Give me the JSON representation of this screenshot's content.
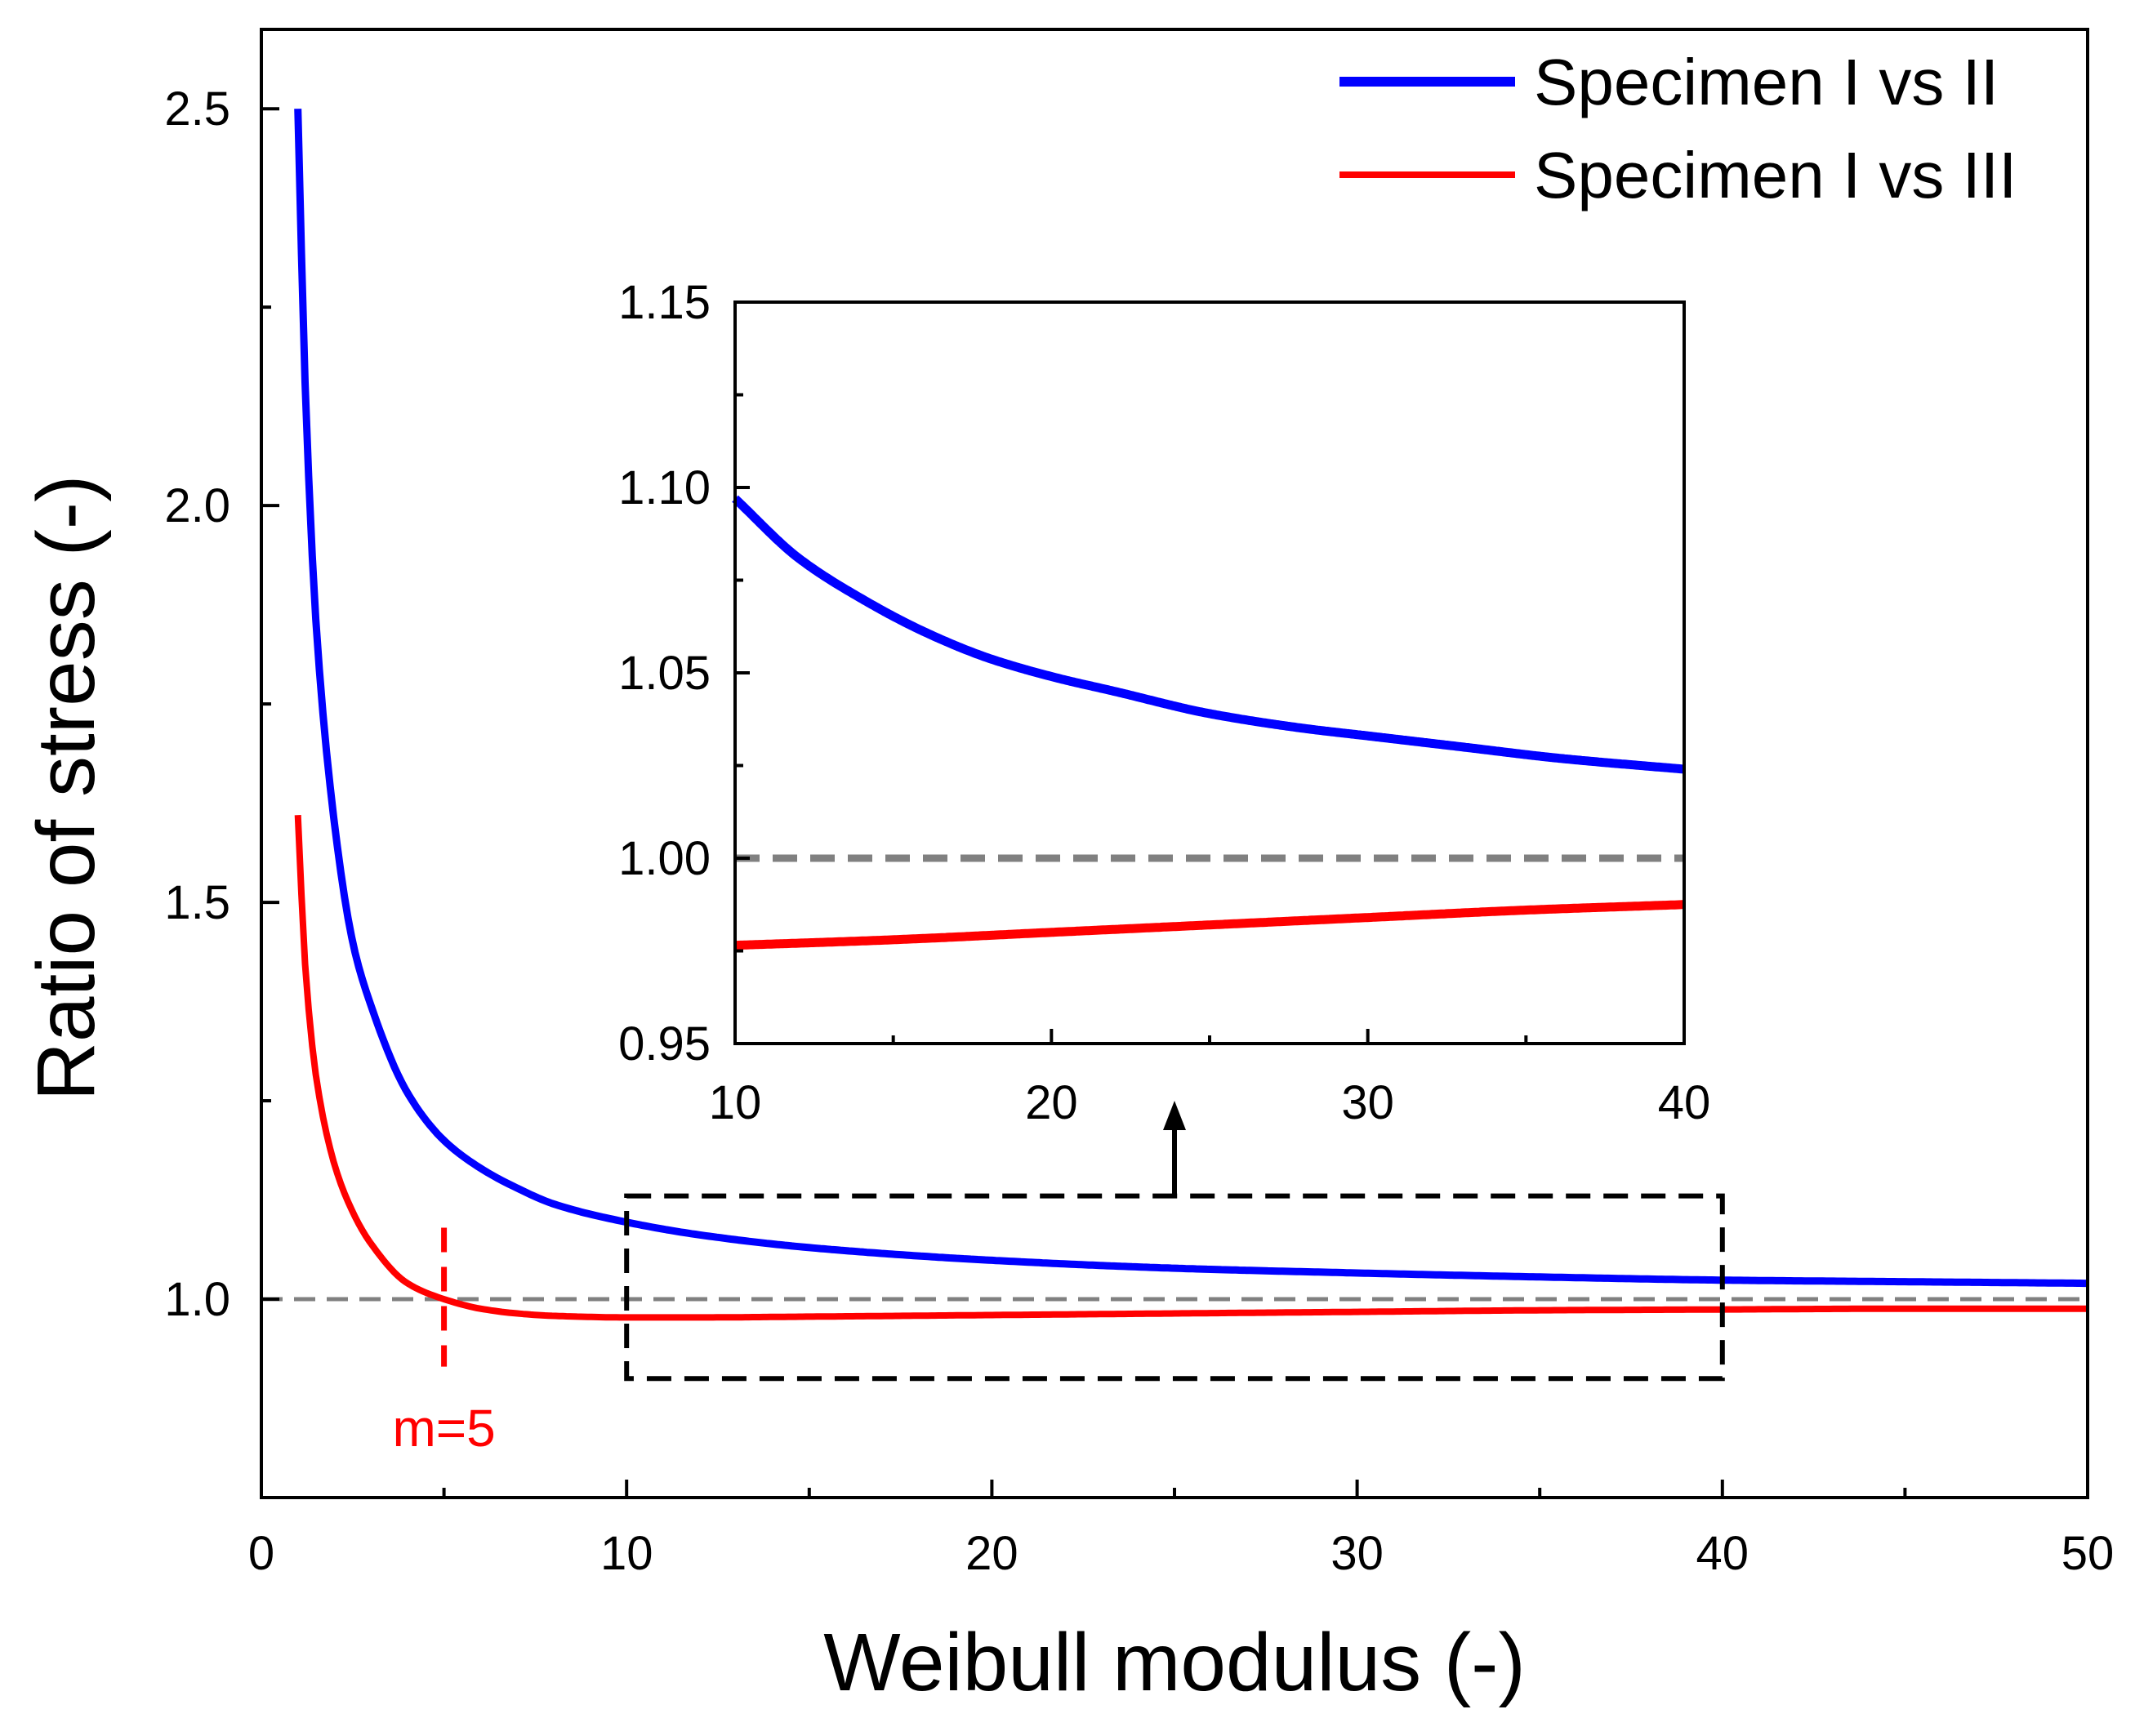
{
  "chart_data": {
    "type": "line",
    "xlabel": "Weibull modulus (-)",
    "ylabel": "Ratio of stress (-)",
    "xlim": [
      0,
      50
    ],
    "ylim": [
      0.75,
      2.6
    ],
    "xticks": [
      0,
      10,
      20,
      30,
      40,
      50
    ],
    "xtick_labels": [
      "0",
      "10",
      "20",
      "30",
      "40",
      "50"
    ],
    "yticks": [
      1.0,
      1.5,
      2.0,
      2.5
    ],
    "ytick_labels": [
      "1.0",
      "1.5",
      "2.0",
      "2.5"
    ],
    "reference_line": {
      "y": 1.0,
      "style": "dashed",
      "color": "#808080"
    },
    "legend_position": "top-right",
    "series": [
      {
        "name": "Specimen I vs II",
        "color": "#0000ff",
        "x": [
          1,
          1.2,
          1.5,
          2,
          2.5,
          3,
          4,
          5,
          6,
          7,
          8,
          10,
          12,
          15,
          20,
          25,
          30,
          35,
          40,
          45,
          50
        ],
        "y": [
          2.5,
          2.15,
          1.85,
          1.6,
          1.45,
          1.37,
          1.26,
          1.2,
          1.165,
          1.14,
          1.12,
          1.097,
          1.081,
          1.065,
          1.049,
          1.039,
          1.033,
          1.028,
          1.024,
          1.022,
          1.02
        ]
      },
      {
        "name": "Specimen I vs III",
        "color": "#ff0000",
        "x": [
          1,
          1.2,
          1.5,
          2,
          2.5,
          3,
          4,
          5,
          6,
          7,
          8,
          10,
          12,
          15,
          20,
          25,
          30,
          35,
          40,
          45,
          50
        ],
        "y": [
          1.61,
          1.42,
          1.28,
          1.17,
          1.11,
          1.07,
          1.02,
          1.0,
          0.988,
          0.982,
          0.979,
          0.977,
          0.977,
          0.978,
          0.98,
          0.982,
          0.984,
          0.986,
          0.987,
          0.988,
          0.988
        ]
      }
    ],
    "annotations": [
      {
        "text": "m=5",
        "x": 5,
        "color": "#ff0000",
        "marker": "vertical dashed line at x=5"
      }
    ],
    "zoom_box": {
      "x_range": [
        10,
        40
      ],
      "y_range": [
        0.9,
        1.13
      ],
      "style": "dashed black rectangle with arrow to inset"
    },
    "inset": {
      "type": "line",
      "xlim": [
        10,
        40
      ],
      "ylim": [
        0.95,
        1.15
      ],
      "xticks": [
        10,
        20,
        30,
        40
      ],
      "xtick_labels": [
        "10",
        "20",
        "30",
        "40"
      ],
      "yticks": [
        0.95,
        1.0,
        1.05,
        1.1,
        1.15
      ],
      "ytick_labels": [
        "0.95",
        "1.00",
        "1.05",
        "1.10",
        "1.15"
      ],
      "reference_line": {
        "y": 1.0,
        "style": "dashed",
        "color": "#808080"
      },
      "series": [
        {
          "name": "Specimen I vs II",
          "color": "#0000ff",
          "x": [
            10,
            12,
            14,
            16,
            18,
            20,
            22,
            25,
            28,
            30,
            33,
            36,
            40
          ],
          "y": [
            1.097,
            1.081,
            1.07,
            1.061,
            1.054,
            1.049,
            1.045,
            1.039,
            1.035,
            1.033,
            1.03,
            1.027,
            1.024
          ]
        },
        {
          "name": "Specimen I vs III",
          "color": "#ff0000",
          "x": [
            10,
            15,
            20,
            25,
            30,
            35,
            40
          ],
          "y": [
            0.9765,
            0.978,
            0.98,
            0.982,
            0.984,
            0.986,
            0.9875
          ]
        }
      ]
    }
  }
}
